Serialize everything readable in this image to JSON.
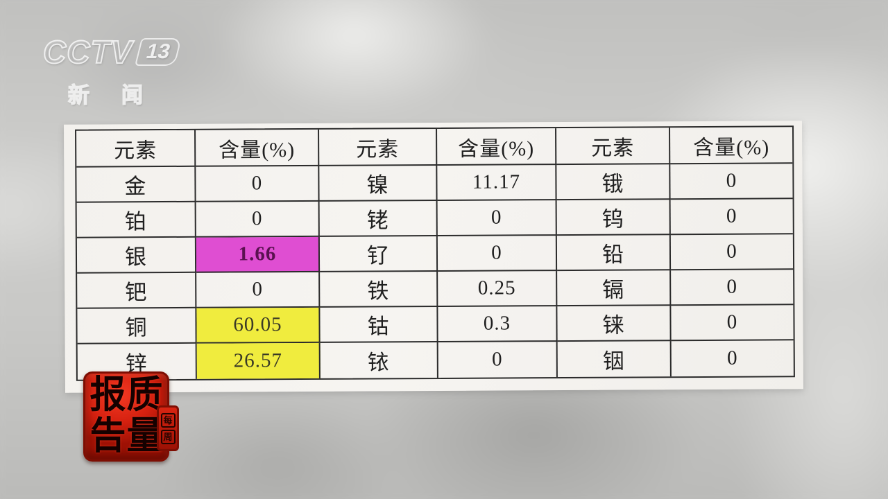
{
  "channel": {
    "brand": "CCTV",
    "number": "13",
    "name": "新闻"
  },
  "stamp": {
    "reading": "质量报告",
    "top_left": "报",
    "top_right": "质",
    "bottom_left": "告",
    "bottom_right": "量",
    "side_top": "每",
    "side_bottom": "周"
  },
  "table": {
    "headers": [
      "元素",
      "含量(%)",
      "元素",
      "含量(%)",
      "元素",
      "含量(%)"
    ],
    "rows": [
      [
        "金",
        "0",
        "镍",
        "11.17",
        "锇",
        "0"
      ],
      [
        "铂",
        "0",
        "铑",
        "0",
        "钨",
        "0"
      ],
      [
        "银",
        "1.66",
        "钌",
        "0",
        "铅",
        "0"
      ],
      [
        "钯",
        "0",
        "铁",
        "0.25",
        "镉",
        "0"
      ],
      [
        "铜",
        "60.05",
        "钴",
        "0.3",
        "铼",
        "0"
      ],
      [
        "锌",
        "26.57",
        "铱",
        "0",
        "铟",
        "0"
      ]
    ]
  },
  "colors": {
    "magenta_highlight": "#df4ed2",
    "yellow_highlight": "#f0ec3e",
    "stamp_red": "#d62110",
    "paper": "#f4f2ee",
    "table_line": "#2b2b2b"
  }
}
